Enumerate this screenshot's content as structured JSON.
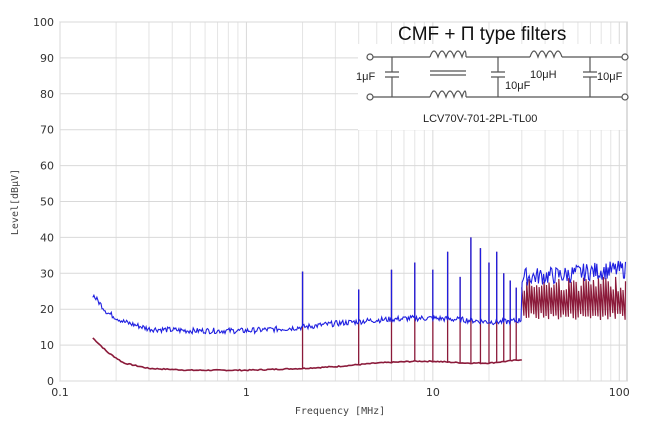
{
  "chart_data": {
    "type": "line",
    "title": "CMF + Π type filters",
    "xlabel": "Frequency [MHz]",
    "ylabel": "Level[dBμV]",
    "xscale": "log",
    "xlim": [
      0.1,
      110
    ],
    "ylim": [
      0,
      100
    ],
    "x_ticks": [
      0.1,
      1,
      10,
      100
    ],
    "x_tick_labels": [
      "0.1",
      "1",
      "10",
      "100"
    ],
    "y_ticks": [
      0,
      10,
      20,
      30,
      40,
      50,
      60,
      70,
      80,
      90,
      100
    ],
    "y_tick_labels": [
      "0",
      "10",
      "20",
      "30",
      "40",
      "50",
      "60",
      "70",
      "80",
      "90",
      "100"
    ],
    "grid": true,
    "series": [
      {
        "color": "#1f1fe0",
        "x": [
          0.15,
          0.18,
          0.22,
          0.3,
          0.5,
          1.0,
          1.5,
          2.0,
          3.0,
          5.0,
          8.0,
          10.0,
          15.0,
          20.0,
          25.0,
          30.0,
          30.01,
          50.0,
          70.0,
          100.0,
          108.0
        ],
        "values": [
          24,
          19,
          16.5,
          14.5,
          14,
          14,
          14.5,
          15,
          16,
          17,
          17.5,
          17.5,
          17,
          16.5,
          16.5,
          17,
          29,
          29.5,
          30.5,
          31,
          31
        ],
        "spikes": [
          {
            "x": 2.0,
            "y": 30.5
          },
          {
            "x": 4.0,
            "y": 25.5
          },
          {
            "x": 6.0,
            "y": 31
          },
          {
            "x": 8.0,
            "y": 33
          },
          {
            "x": 10.0,
            "y": 31
          },
          {
            "x": 12.0,
            "y": 36
          },
          {
            "x": 14.0,
            "y": 29
          },
          {
            "x": 16.0,
            "y": 40
          },
          {
            "x": 18.0,
            "y": 37
          },
          {
            "x": 20.0,
            "y": 33
          },
          {
            "x": 22.0,
            "y": 36
          },
          {
            "x": 24.0,
            "y": 30
          },
          {
            "x": 26.0,
            "y": 28
          },
          {
            "x": 28.0,
            "y": 26
          }
        ]
      },
      {
        "color": "#8b1a3a",
        "x": [
          0.15,
          0.18,
          0.22,
          0.3,
          0.5,
          1.0,
          2.0,
          3.0,
          5.0,
          8.0,
          10.0,
          15.0,
          20.0,
          25.0,
          30.0
        ],
        "values": [
          12,
          8,
          5,
          3.5,
          3,
          3,
          3.5,
          4,
          5,
          5.5,
          5.5,
          5,
          5,
          5.5,
          6
        ],
        "spikes": [
          {
            "x": 2.0,
            "y": 30.5
          },
          {
            "x": 4.0,
            "y": 25.5
          },
          {
            "x": 6.0,
            "y": 31
          },
          {
            "x": 8.0,
            "y": 33
          },
          {
            "x": 10.0,
            "y": 31
          },
          {
            "x": 12.0,
            "y": 36
          },
          {
            "x": 14.0,
            "y": 29
          },
          {
            "x": 16.0,
            "y": 40
          },
          {
            "x": 18.0,
            "y": 37
          },
          {
            "x": 20.0,
            "y": 33
          },
          {
            "x": 22.0,
            "y": 36
          },
          {
            "x": 24.0,
            "y": 30
          },
          {
            "x": 26.0,
            "y": 28
          },
          {
            "x": 28.0,
            "y": 26
          }
        ],
        "sawtooth": {
          "x_start": 30,
          "x_end": 108,
          "peak": 29,
          "trough": 17
        }
      }
    ],
    "schematic": {
      "cap1": "1μF",
      "cap2": "10μF",
      "inductor": "10μH",
      "cap3": "10μF",
      "part_number": "LCV70V-701-2PL-TL00"
    }
  }
}
